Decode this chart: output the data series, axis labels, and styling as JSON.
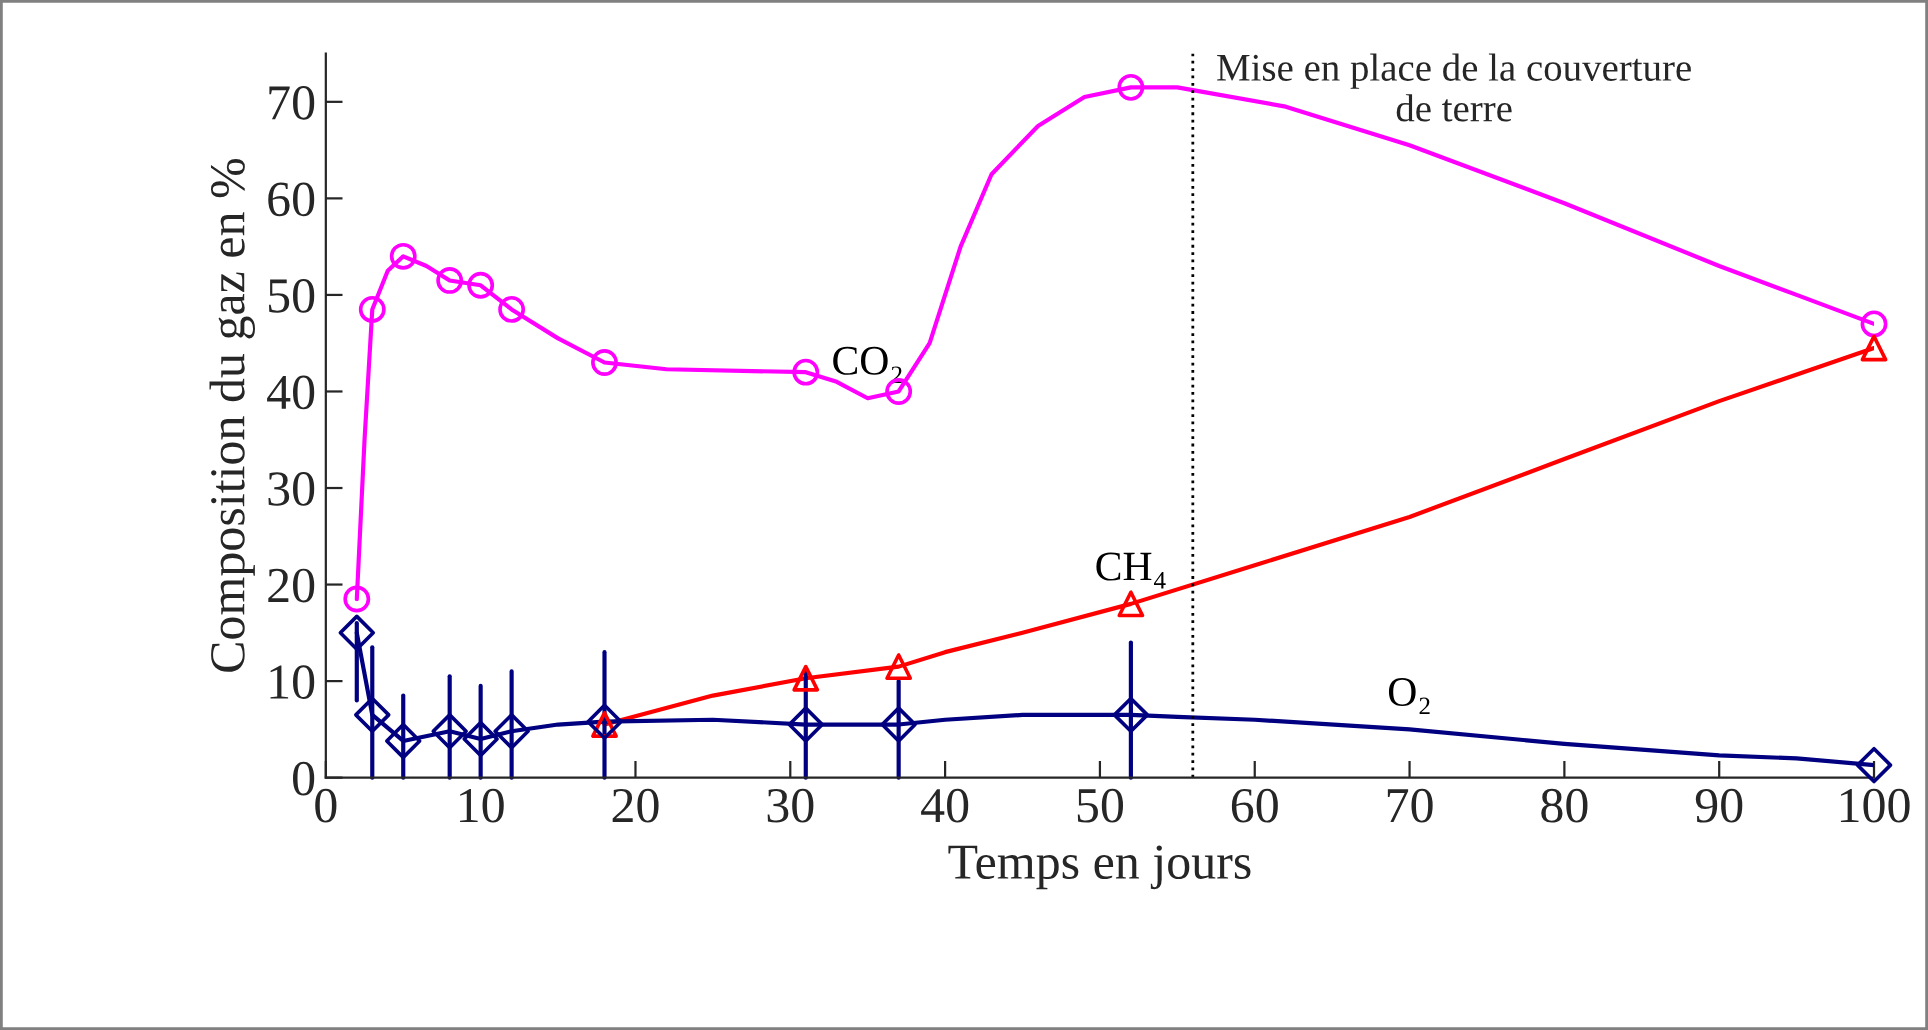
{
  "chart_data": {
    "type": "line",
    "xlabel": "Temps en jours",
    "ylabel": "Composition du gaz en %",
    "xlim": [
      0,
      100
    ],
    "ylim": [
      0,
      75
    ],
    "xticks": [
      0,
      10,
      20,
      30,
      40,
      50,
      60,
      70,
      80,
      90,
      100
    ],
    "yticks": [
      0,
      10,
      20,
      30,
      40,
      50,
      60,
      70
    ],
    "grid": false,
    "legend": false,
    "series": [
      {
        "name": "CO₂",
        "color": "#ff00ff",
        "line_style": "solid",
        "x": [
          2,
          2.5,
          3,
          4,
          5,
          6.5,
          8,
          10,
          12,
          15,
          18,
          22,
          31,
          33,
          35,
          37,
          39,
          41,
          43,
          46,
          49,
          52,
          55,
          62,
          70,
          80,
          90,
          95,
          100
        ],
        "values": [
          18.5,
          35,
          48.5,
          52.5,
          54,
          53,
          51.5,
          51,
          48.5,
          45.5,
          43,
          42.3,
          42,
          41,
          39.3,
          40,
          45,
          55,
          62.5,
          67.5,
          70.5,
          71.5,
          71.5,
          69.5,
          65.5,
          59.5,
          53,
          50,
          47
        ]
      },
      {
        "type": "scatter",
        "color": "#ff00ff",
        "marker": "circle",
        "x": [
          2,
          3,
          5,
          8,
          10,
          12,
          18,
          31,
          37,
          52,
          100
        ],
        "values": [
          18.5,
          48.5,
          54,
          51.5,
          51,
          48.5,
          43,
          42,
          40,
          71.5,
          47
        ]
      },
      {
        "name": "CH₄",
        "color": "#ff0000",
        "line_style": "solid",
        "x": [
          18,
          25,
          31,
          37,
          40,
          45,
          52,
          60,
          70,
          80,
          90,
          100
        ],
        "values": [
          5.5,
          8.5,
          10.3,
          11.5,
          13,
          15,
          18,
          22,
          27,
          33,
          39,
          44.5
        ]
      },
      {
        "type": "scatter",
        "color": "#ff0000",
        "marker": "triangle",
        "x": [
          18,
          31,
          37,
          52,
          100
        ],
        "values": [
          5.5,
          10.3,
          11.5,
          18,
          44.5
        ]
      },
      {
        "name": "O₂",
        "color": "#000080",
        "line_style": "solid",
        "x": [
          2,
          3,
          5,
          8,
          10,
          12,
          15,
          18,
          25,
          31,
          37,
          40,
          45,
          52,
          55,
          60,
          70,
          80,
          90,
          95,
          100
        ],
        "values": [
          15,
          6.5,
          3.8,
          4.8,
          4,
          4.8,
          5.5,
          5.8,
          6,
          5.5,
          5.5,
          6,
          6.5,
          6.5,
          6.3,
          6,
          5,
          3.5,
          2.3,
          2,
          1.3
        ]
      },
      {
        "type": "scatter",
        "color": "#000080",
        "marker": "diamond",
        "x": [
          2,
          3,
          5,
          8,
          10,
          12,
          18,
          31,
          37,
          52,
          100
        ],
        "values": [
          15,
          6.5,
          3.8,
          4.8,
          4,
          4.8,
          5.8,
          5.5,
          5.5,
          6.5,
          1.3
        ],
        "errors": [
          [
            8,
            16
          ],
          [
            0,
            13.5
          ],
          [
            0,
            8.5
          ],
          [
            0,
            10.5
          ],
          [
            0,
            9.5
          ],
          [
            0,
            11
          ],
          [
            0,
            13
          ],
          [
            0,
            11
          ],
          [
            0,
            10
          ],
          [
            0,
            14
          ],
          null
        ]
      }
    ],
    "ref_lines": [
      {
        "axis": "x",
        "value": 56,
        "label": "Mise en place de la couverture\nde terre",
        "color": "#000000",
        "line_style": "dotted"
      }
    ]
  }
}
